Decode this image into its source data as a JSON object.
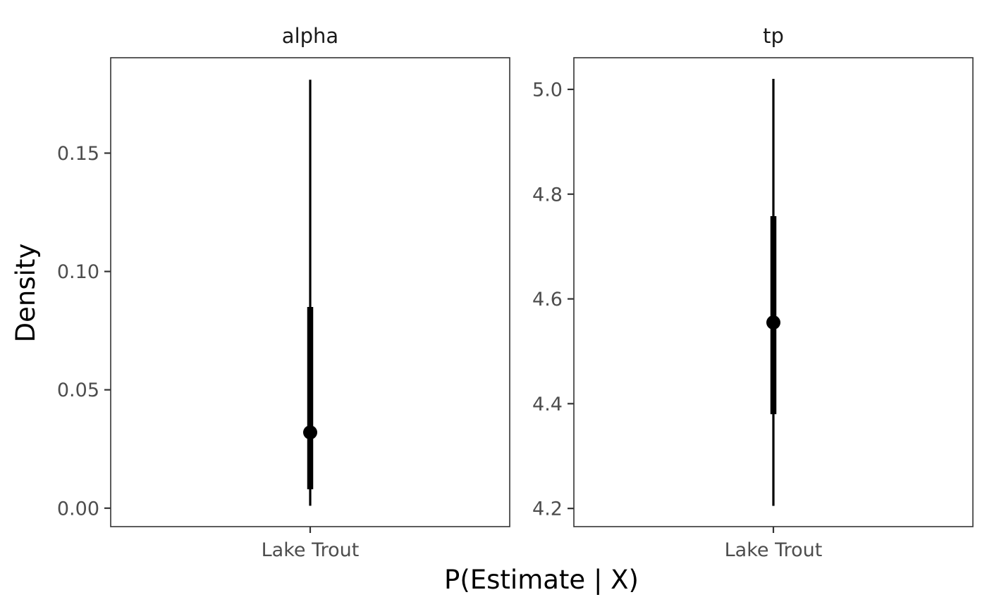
{
  "chart_data": {
    "type": "pointinterval",
    "xlabel": "P(Estimate | X)",
    "ylabel": "Density",
    "panels": [
      {
        "strip": "alpha",
        "category": "Lake Trout",
        "ylim": [
          -0.0078,
          0.1903
        ],
        "yticks": [
          0.0,
          0.05,
          0.1,
          0.15
        ],
        "ytick_labels": [
          "0.00",
          "0.05",
          "0.10",
          "0.15"
        ],
        "point": 0.032,
        "inner_interval": [
          0.008,
          0.085
        ],
        "outer_interval": [
          0.001,
          0.181
        ]
      },
      {
        "strip": "tp",
        "category": "Lake Trout",
        "ylim": [
          4.1653,
          5.0604
        ],
        "yticks": [
          4.2,
          4.4,
          4.6,
          4.8,
          5.0
        ],
        "ytick_labels": [
          "4.2",
          "4.4",
          "4.6",
          "4.8",
          "5.0"
        ],
        "point": 4.555,
        "inner_interval": [
          4.38,
          4.758
        ],
        "outer_interval": [
          4.205,
          5.02
        ]
      }
    ],
    "grid": false,
    "legend": "none"
  }
}
